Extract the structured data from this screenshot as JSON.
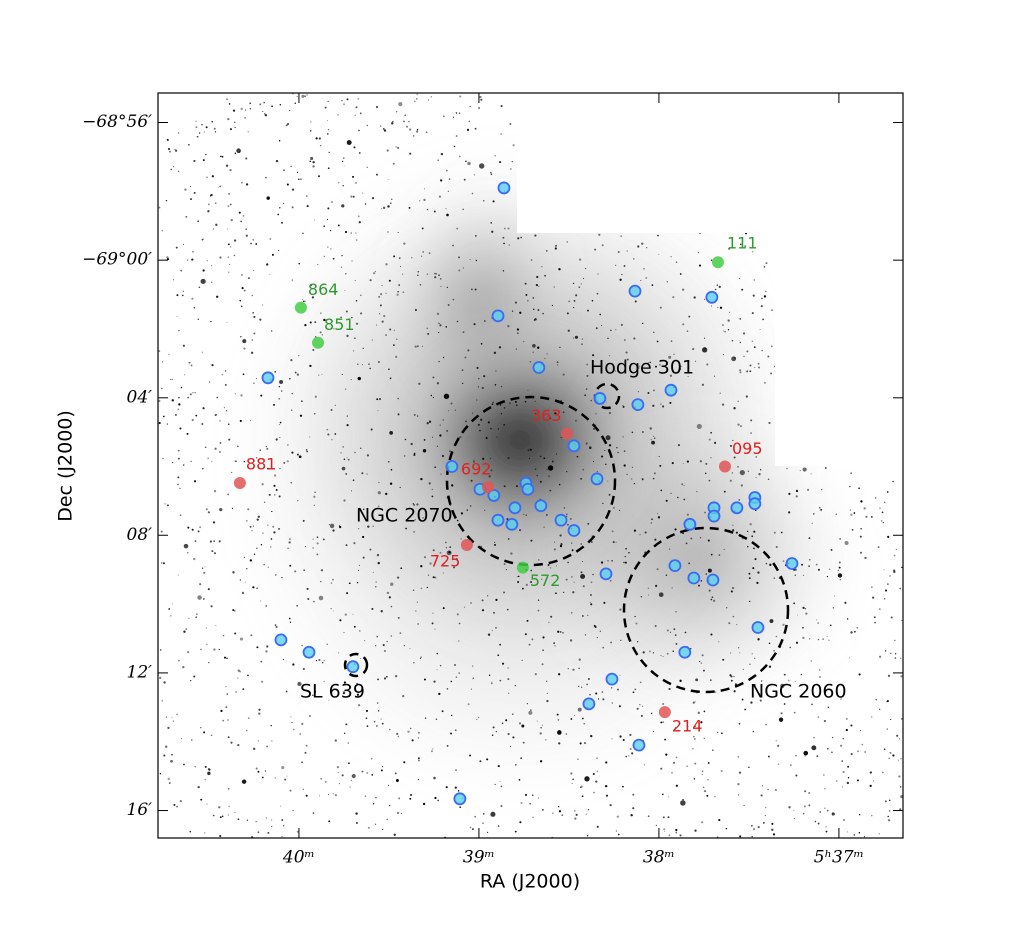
{
  "chart_data": {
    "type": "scatter",
    "xlabel": "RA (J2000)",
    "ylabel": "Dec (J2000)",
    "xlim": [
      40.783,
      36.644
    ],
    "ylim": [
      -68.919,
      -69.28
    ],
    "xticks": [
      {
        "value": 40,
        "label": "40ᵐ"
      },
      {
        "value": 39,
        "label": "39ᵐ"
      },
      {
        "value": 38,
        "label": "38ᵐ"
      },
      {
        "value": 37,
        "label": "5ʰ37ᵐ"
      }
    ],
    "yticks": [
      {
        "value": -68.9333,
        "label": "−68°56′"
      },
      {
        "value": -69.0,
        "label": "−69°00′"
      },
      {
        "value": -69.0667,
        "label": "04′"
      },
      {
        "value": -69.1333,
        "label": "08′"
      },
      {
        "value": -69.2,
        "label": "12′"
      },
      {
        "value": -69.2667,
        "label": "16′"
      }
    ],
    "regions": [
      "NGC 2070",
      "Hodge 301",
      "NGC 2060",
      "SL 639"
    ],
    "series": [
      {
        "color": "#3b6cf0",
        "x": [
          38.861,
          38.133,
          37.706,
          38.894,
          40.172,
          38.667,
          38.328,
          38.117,
          37.933,
          39.15,
          38.472,
          38.344,
          38.994,
          38.917,
          38.739,
          38.728,
          38.8,
          38.656,
          38.894,
          38.817,
          38.544,
          38.472,
          37.828,
          37.694,
          37.694,
          37.567,
          37.467,
          37.467,
          37.261,
          37.911,
          37.806,
          37.7,
          38.294,
          37.45,
          37.856,
          40.1,
          39.944,
          39.7,
          38.261,
          38.389,
          38.111,
          39.106
        ],
        "values": [
          -68.965,
          -69.015,
          -69.018,
          -69.027,
          -69.057,
          -69.052,
          -69.067,
          -69.07,
          -69.063,
          -69.1,
          -69.09,
          -69.106,
          -69.111,
          -69.114,
          -69.108,
          -69.111,
          -69.12,
          -69.119,
          -69.126,
          -69.128,
          -69.126,
          -69.131,
          -69.128,
          -69.12,
          -69.124,
          -69.12,
          -69.115,
          -69.118,
          -69.147,
          -69.148,
          -69.154,
          -69.155,
          -69.152,
          -69.178,
          -69.19,
          -69.184,
          -69.19,
          -69.197,
          -69.203,
          -69.215,
          -69.235,
          -69.261
        ]
      },
      {
        "color": "#e05555",
        "x": [
          38.511,
          37.633,
          40.328,
          38.95,
          39.067,
          37.967
        ],
        "values": [
          -69.084,
          -69.1,
          -69.108,
          -69.11,
          -69.138,
          -69.219
        ],
        "labels": [
          "363",
          "095",
          "881",
          "692",
          "725",
          "214"
        ]
      },
      {
        "color": "#44cc44",
        "x": [
          37.672,
          39.989,
          39.894,
          38.756
        ],
        "values": [
          -69.001,
          -69.023,
          -69.04,
          -69.149
        ],
        "labels": [
          "111",
          "864",
          "851",
          "572"
        ]
      }
    ]
  }
}
